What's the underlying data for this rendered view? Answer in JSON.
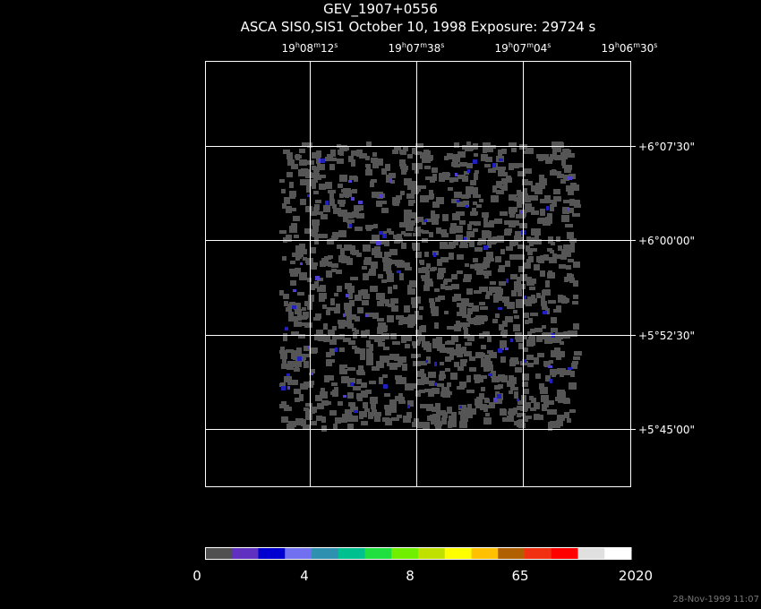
{
  "header": {
    "title": "GEV_1907+0556",
    "subtitle": "ASCA SIS0,SIS1 October 10, 1998 Exposure: 29724 s"
  },
  "ra_labels": [
    [
      "19",
      "h",
      "08",
      "m",
      "12",
      "s"
    ],
    [
      "19",
      "h",
      "07",
      "m",
      "38",
      "s"
    ],
    [
      "19",
      "h",
      "07",
      "m",
      "04",
      "s"
    ],
    [
      "19",
      "h",
      "06",
      "m",
      "30",
      "s"
    ]
  ],
  "dec_labels": [
    "+6°07'30\"",
    "+6°00'00\"",
    "+5°52'30\"",
    "+5°45'00\""
  ],
  "colorbar": {
    "colors": [
      "#505050",
      "#6030c0",
      "#0000d0",
      "#7070f0",
      "#3090b0",
      "#00c090",
      "#20e040",
      "#70f000",
      "#c0e000",
      "#ffff00",
      "#ffc000",
      "#b06000",
      "#f03010",
      "#ff0000",
      "#e0e0e0",
      "#ffffff"
    ],
    "labels": [
      "0",
      "4",
      "8",
      "65",
      "2020"
    ]
  },
  "footer": "28-Nov-1999 11:07"
}
